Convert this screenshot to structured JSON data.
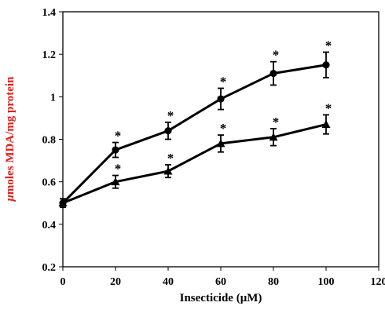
{
  "chart_data": {
    "type": "line",
    "title": "",
    "xlabel": "Insecticide (μM)",
    "ylabel_prefix": "μ",
    "ylabel_rest": "moles MDA/mg protein",
    "ylabel_color": "#e0201b",
    "xlim": [
      0,
      120
    ],
    "ylim": [
      0.2,
      1.4
    ],
    "xticks": [
      0,
      20,
      40,
      60,
      80,
      100,
      120
    ],
    "yticks": [
      0.2,
      0.4,
      0.6,
      0.8,
      1.0,
      1.2,
      1.4
    ],
    "xtick_labels": [
      "0",
      "20",
      "40",
      "60",
      "80",
      "100",
      "120"
    ],
    "ytick_labels": [
      "0.2",
      "0.4",
      "0.6",
      "0.8",
      "1",
      "1.2",
      "1.4"
    ],
    "grid": false,
    "legend": false,
    "series": [
      {
        "marker": "circle",
        "color": "#000000",
        "x": [
          0,
          20,
          40,
          60,
          80,
          100
        ],
        "y": [
          0.5,
          0.75,
          0.84,
          0.99,
          1.11,
          1.15
        ],
        "error": [
          0.02,
          0.035,
          0.04,
          0.05,
          0.055,
          0.06
        ],
        "significance": [
          "",
          "*",
          "*",
          "*",
          "*",
          "*"
        ]
      },
      {
        "marker": "triangle",
        "color": "#000000",
        "x": [
          0,
          20,
          40,
          60,
          80,
          100
        ],
        "y": [
          0.5,
          0.6,
          0.65,
          0.78,
          0.81,
          0.87
        ],
        "error": [
          0.02,
          0.03,
          0.03,
          0.04,
          0.04,
          0.045
        ],
        "significance": [
          "",
          "*",
          "*",
          "*",
          "*",
          "*"
        ]
      }
    ]
  }
}
